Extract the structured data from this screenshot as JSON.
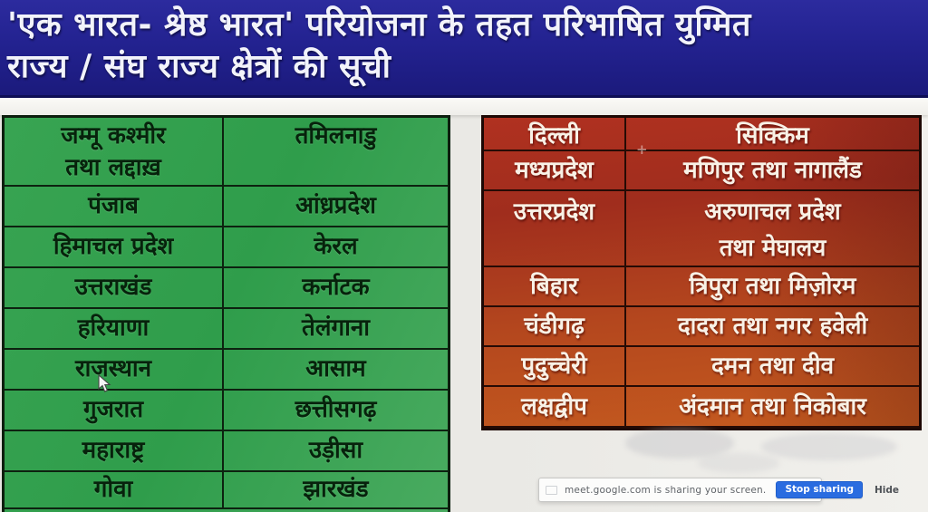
{
  "header": {
    "title_line1": "'एक भारत- श्रेष्ठ भारत' परियोजना के तहत परिभाषित युग्मित",
    "title_line2": "राज्य / संघ राज्य क्षेत्रों की सूची"
  },
  "left_table": {
    "theme_color": "#2f9d4b",
    "text_color": "#07220c",
    "rows": [
      [
        [
          "जम्मू कश्मीर",
          "तथा लद्दाख़"
        ],
        [
          "तमिलनाडु"
        ]
      ],
      [
        [
          "पंजाब"
        ],
        [
          "आंध्रप्रदेश"
        ]
      ],
      [
        [
          "हिमाचल प्रदेश"
        ],
        [
          "केरल"
        ]
      ],
      [
        [
          "उत्तराखंड"
        ],
        [
          "कर्नाटक"
        ]
      ],
      [
        [
          "हरियाणा"
        ],
        [
          "तेलंगाना"
        ]
      ],
      [
        [
          "राजस्थान"
        ],
        [
          "आसाम"
        ]
      ],
      [
        [
          "गुजरात"
        ],
        [
          "छत्तीसगढ़"
        ]
      ],
      [
        [
          "महाराष्ट्र"
        ],
        [
          "उड़ीसा"
        ]
      ],
      [
        [
          "गोवा"
        ],
        [
          "झारखंड"
        ]
      ]
    ]
  },
  "right_table": {
    "theme_color": "#b03120",
    "text_color": "#f8f1e6",
    "rows": [
      [
        [
          "दिल्ली"
        ],
        [
          "सिक्किम"
        ]
      ],
      [
        [
          "मध्यप्रदेश"
        ],
        [
          "मणिपुर तथा नागालैंड"
        ]
      ],
      [
        [
          "उत्तरप्रदेश"
        ],
        [
          "अरुणाचल प्रदेश",
          "तथा मेघालय"
        ]
      ],
      [
        [
          "बिहार"
        ],
        [
          "त्रिपुरा तथा मिज़ोरम"
        ]
      ],
      [
        [
          "चंडीगढ़"
        ],
        [
          "दादरा तथा नगर हवेली"
        ]
      ],
      [
        [
          "पुदुच्चेरी"
        ],
        [
          "दमन तथा दीव"
        ]
      ],
      [
        [
          "लक्षद्वीप"
        ],
        [
          "अंदमान तथा निकोबार"
        ]
      ]
    ]
  },
  "share_bar": {
    "message": "meet.google.com is sharing your screen.",
    "stop_button_label": "Stop sharing",
    "hide_label": "Hide",
    "button_color": "#2a6ce0"
  }
}
